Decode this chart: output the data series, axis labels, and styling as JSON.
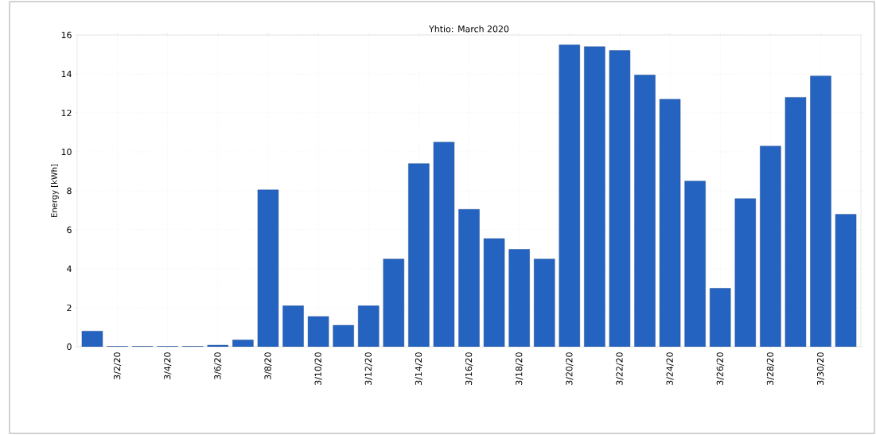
{
  "chart_data": {
    "type": "bar",
    "title": "Yhtio: March 2020",
    "ylabel": "Energy [kWh]",
    "categories": [
      null,
      "3/2/20",
      null,
      "3/4/20",
      null,
      "3/6/20",
      null,
      "3/8/20",
      null,
      "3/10/20",
      null,
      "3/12/20",
      null,
      "3/14/20",
      null,
      "3/16/20",
      null,
      "3/18/20",
      null,
      "3/20/20",
      null,
      "3/22/20",
      null,
      "3/24/20",
      null,
      "3/26/20",
      null,
      "3/28/20",
      null,
      "3/30/20",
      null
    ],
    "values": [
      0.8,
      0.02,
      0.02,
      0.02,
      0.02,
      0.08,
      0.35,
      8.05,
      2.1,
      1.55,
      1.1,
      2.1,
      4.5,
      9.4,
      10.5,
      7.05,
      5.55,
      5.0,
      4.5,
      15.5,
      15.4,
      15.2,
      13.95,
      12.7,
      8.5,
      3.0,
      7.6,
      10.3,
      12.8,
      13.9,
      6.8
    ],
    "color": "#2563c0",
    "ylim": [
      0,
      16
    ],
    "yticks": [
      0,
      2,
      4,
      6,
      8,
      10,
      12,
      14,
      16
    ],
    "grid": true
  }
}
